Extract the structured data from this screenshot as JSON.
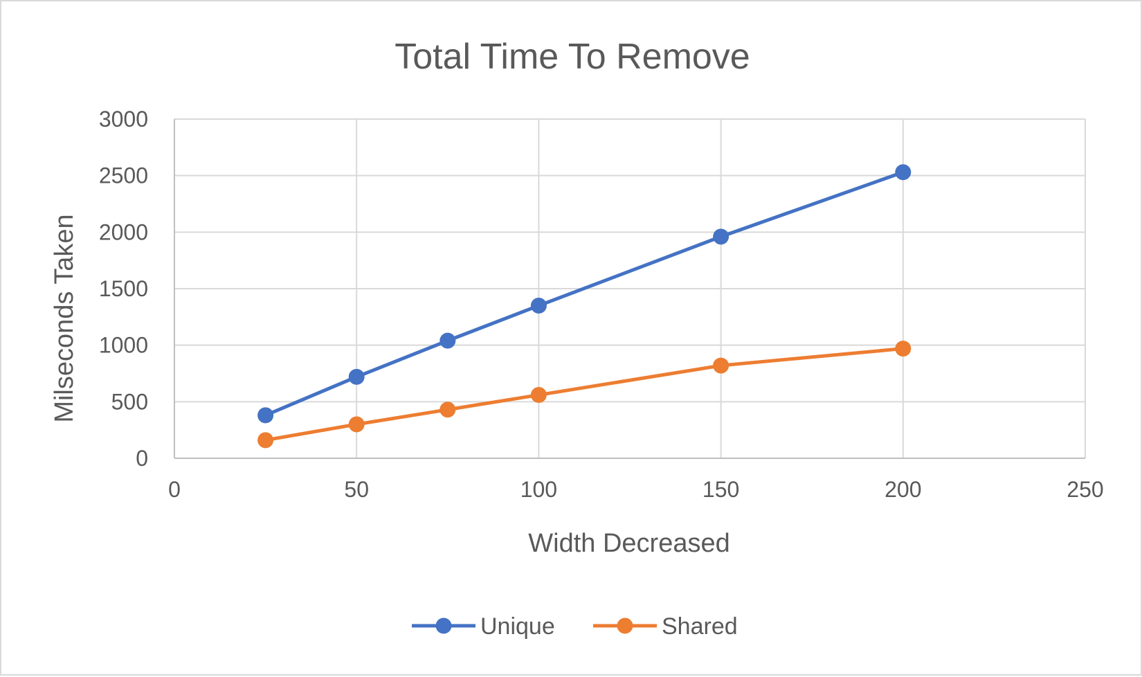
{
  "chart_data": {
    "type": "scatter",
    "mode": "lines+markers",
    "title": "Total Time To Remove",
    "xlabel": "Width Decreased",
    "ylabel": "Milseconds Taken",
    "xlim": [
      0,
      250
    ],
    "ylim": [
      0,
      3000
    ],
    "x_ticks": [
      0,
      50,
      100,
      150,
      200,
      250
    ],
    "y_ticks": [
      0,
      500,
      1000,
      1500,
      2000,
      2500,
      3000
    ],
    "x_tick_labels": [
      "0",
      "50",
      "100",
      "150",
      "200",
      "250"
    ],
    "y_tick_labels": [
      "0",
      "500",
      "1000",
      "1500",
      "2000",
      "2500",
      "3000"
    ],
    "grid": true,
    "legend_position": "bottom",
    "series": [
      {
        "name": "Unique",
        "color": "#4472C4",
        "x": [
          25,
          50,
          75,
          100,
          150,
          200
        ],
        "y": [
          380,
          720,
          1040,
          1350,
          1960,
          2530
        ]
      },
      {
        "name": "Shared",
        "color": "#ED7D31",
        "x": [
          25,
          50,
          75,
          100,
          150,
          200
        ],
        "y": [
          160,
          300,
          430,
          560,
          820,
          970
        ]
      }
    ]
  }
}
